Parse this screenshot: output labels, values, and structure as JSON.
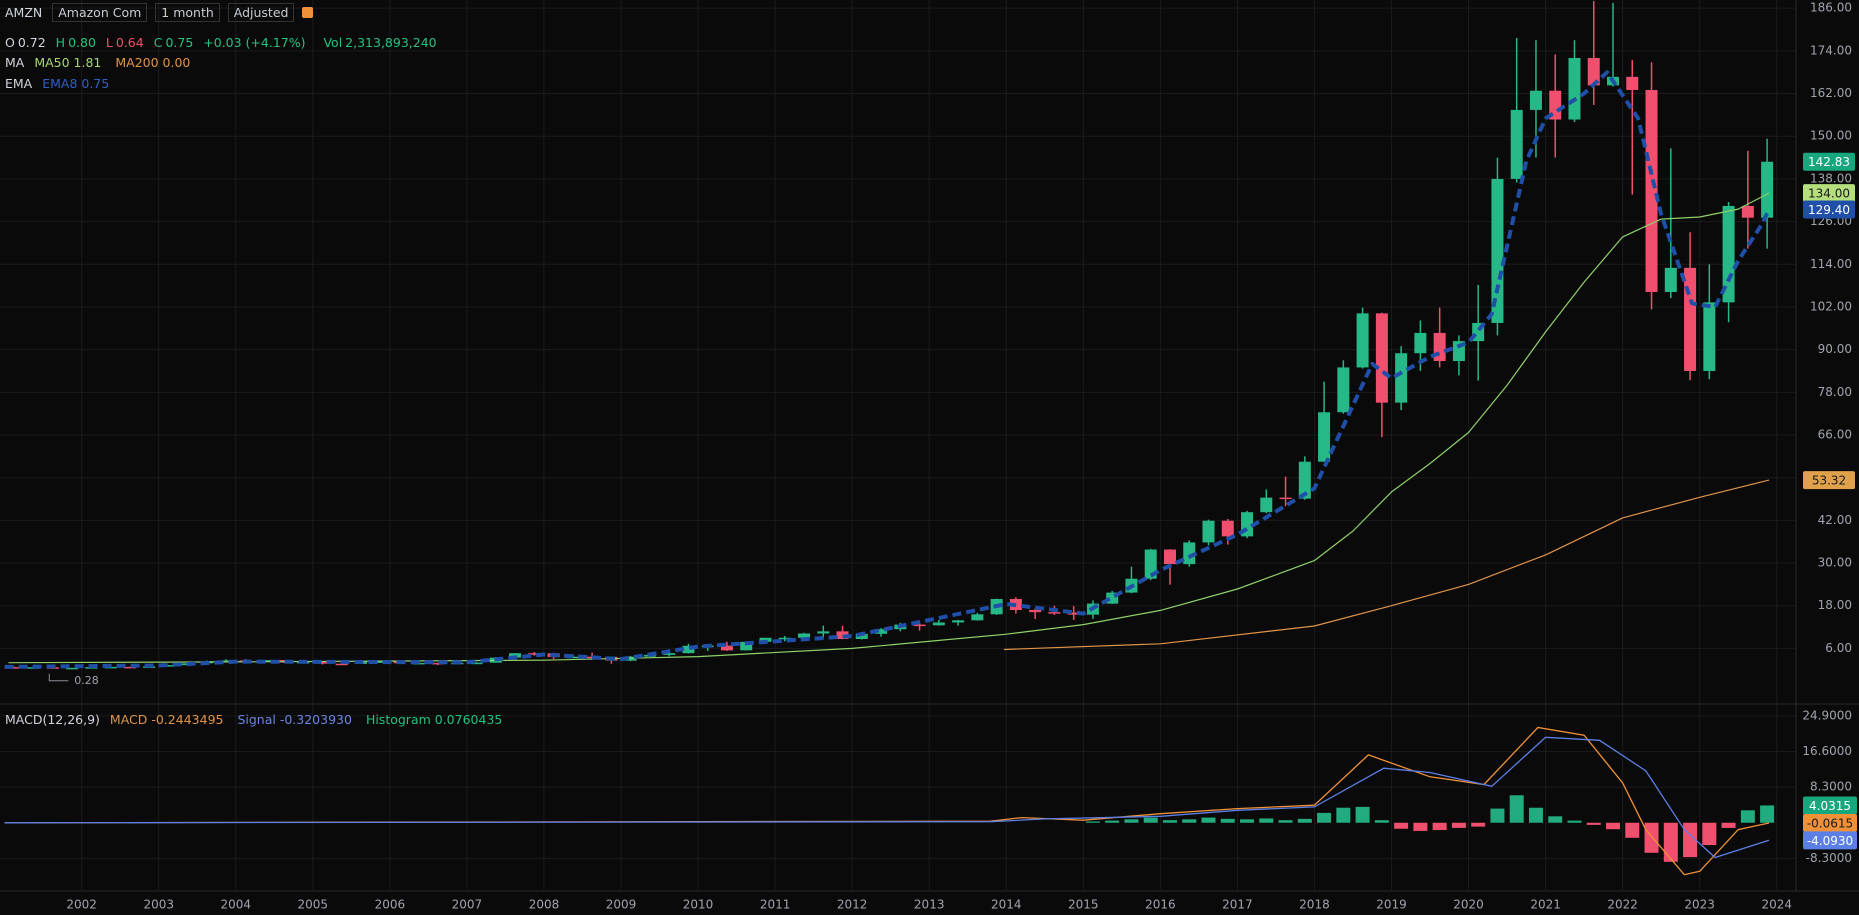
{
  "header": {
    "symbol": "AMZN",
    "name": "Amazon Com",
    "interval": "1 month",
    "adjustment": "Adjusted"
  },
  "ohlc_legend": {
    "open_label": "O",
    "open": "0.72",
    "high_label": "H",
    "high": "0.80",
    "low_label": "L",
    "low": "0.64",
    "close_label": "C",
    "close": "0.75",
    "change": "+0.03 (+4.17%)",
    "volume_label": "Vol",
    "volume": "2,313,893,240"
  },
  "ma_legend": {
    "label": "MA",
    "ma50": "MA50 1.81",
    "ma200": "MA200 0.00"
  },
  "ema_legend": {
    "label": "EMA",
    "ema8": "EMA8 0.75"
  },
  "macd_legend": {
    "label": "MACD(12,26,9)",
    "macd": "MACD -0.2443495",
    "signal": "Signal -0.3203930",
    "histogram": "Histogram 0.0760435"
  },
  "chart_data": [
    {
      "type": "candlestick",
      "up_color": "#26b886",
      "down_color": "#f0506e",
      "x": [
        2001.125,
        2001.375,
        2001.625,
        2001.875,
        2002.125,
        2002.375,
        2002.625,
        2002.875,
        2003.125,
        2003.375,
        2003.625,
        2003.875,
        2004.125,
        2004.375,
        2004.625,
        2004.875,
        2005.125,
        2005.375,
        2005.625,
        2005.875,
        2006.125,
        2006.375,
        2006.625,
        2006.875,
        2007.125,
        2007.375,
        2007.625,
        2007.875,
        2008.125,
        2008.375,
        2008.625,
        2008.875,
        2009.125,
        2009.375,
        2009.625,
        2009.875,
        2010.125,
        2010.375,
        2010.625,
        2010.875,
        2011.125,
        2011.375,
        2011.625,
        2011.875,
        2012.125,
        2012.375,
        2012.625,
        2012.875,
        2013.125,
        2013.375,
        2013.625,
        2013.875,
        2014.125,
        2014.375,
        2014.625,
        2014.875,
        2015.125,
        2015.375,
        2015.625,
        2015.875,
        2016.125,
        2016.375,
        2016.625,
        2016.875,
        2017.125,
        2017.375,
        2017.625,
        2017.875,
        2018.125,
        2018.375,
        2018.625,
        2018.875,
        2019.125,
        2019.375,
        2019.625,
        2019.875,
        2020.125,
        2020.375,
        2020.625,
        2020.875,
        2021.125,
        2021.375,
        2021.625,
        2021.875,
        2022.125,
        2022.375,
        2022.625,
        2022.875,
        2023.125,
        2023.375,
        2023.625,
        2023.875
      ],
      "ohlc": [
        [
          0.75,
          0.85,
          0.5,
          0.53
        ],
        [
          0.53,
          0.85,
          0.45,
          0.71
        ],
        [
          0.71,
          0.75,
          0.3,
          0.32
        ],
        [
          0.32,
          0.56,
          0.28,
          0.54
        ],
        [
          0.54,
          0.75,
          0.49,
          0.73
        ],
        [
          0.73,
          0.98,
          0.68,
          0.81
        ],
        [
          0.81,
          0.85,
          0.52,
          0.8
        ],
        [
          0.8,
          1.1,
          0.77,
          0.94
        ],
        [
          0.94,
          1.35,
          0.9,
          1.3
        ],
        [
          1.3,
          1.85,
          1.28,
          1.82
        ],
        [
          1.82,
          2.6,
          1.8,
          2.42
        ],
        [
          2.42,
          2.97,
          2.3,
          2.63
        ],
        [
          2.63,
          3.0,
          1.9,
          2.16
        ],
        [
          2.16,
          2.75,
          2.0,
          2.72
        ],
        [
          2.72,
          2.75,
          1.9,
          2.04
        ],
        [
          2.04,
          2.3,
          1.8,
          2.21
        ],
        [
          2.21,
          2.23,
          1.5,
          1.71
        ],
        [
          1.71,
          2.0,
          1.6,
          1.65
        ],
        [
          1.65,
          2.3,
          1.62,
          2.27
        ],
        [
          2.27,
          2.5,
          1.9,
          2.36
        ],
        [
          2.36,
          2.5,
          1.75,
          1.83
        ],
        [
          1.83,
          1.95,
          1.6,
          1.93
        ],
        [
          1.93,
          1.97,
          1.3,
          1.61
        ],
        [
          1.61,
          2.2,
          1.6,
          1.97
        ],
        [
          1.97,
          2.15,
          1.8,
          1.99
        ],
        [
          1.99,
          3.6,
          1.95,
          3.42
        ],
        [
          3.42,
          4.7,
          3.4,
          4.66
        ],
        [
          4.66,
          5.0,
          3.95,
          4.63
        ],
        [
          4.63,
          4.8,
          3.0,
          3.57
        ],
        [
          3.57,
          4.3,
          3.5,
          3.67
        ],
        [
          3.67,
          4.8,
          3.2,
          3.64
        ],
        [
          3.64,
          3.7,
          1.7,
          2.56
        ],
        [
          2.56,
          3.9,
          2.4,
          3.67
        ],
        [
          3.67,
          4.4,
          3.6,
          4.18
        ],
        [
          4.18,
          4.8,
          3.8,
          4.67
        ],
        [
          4.67,
          7.3,
          4.6,
          6.73
        ],
        [
          6.73,
          6.9,
          5.3,
          6.79
        ],
        [
          6.79,
          7.9,
          5.3,
          5.46
        ],
        [
          5.46,
          8.0,
          5.4,
          7.85
        ],
        [
          7.85,
          8.9,
          7.6,
          9.0
        ],
        [
          9.0,
          9.5,
          8.0,
          9.0
        ],
        [
          9.0,
          10.4,
          8.9,
          10.2
        ],
        [
          10.2,
          12.4,
          8.9,
          10.8
        ],
        [
          10.8,
          12.4,
          8.6,
          8.65
        ],
        [
          8.65,
          9.8,
          8.5,
          10.1
        ],
        [
          10.1,
          11.7,
          9.3,
          11.4
        ],
        [
          11.4,
          13.2,
          10.8,
          12.7
        ],
        [
          12.7,
          13.2,
          11.0,
          12.5
        ],
        [
          12.5,
          14.0,
          12.4,
          13.3
        ],
        [
          13.3,
          14.0,
          12.4,
          13.9
        ],
        [
          13.9,
          16.0,
          13.8,
          15.6
        ],
        [
          15.6,
          20.0,
          15.4,
          19.9
        ],
        [
          19.9,
          20.4,
          15.8,
          16.8
        ],
        [
          16.8,
          17.2,
          14.3,
          16.2
        ],
        [
          16.2,
          18.0,
          15.4,
          16.1
        ],
        [
          16.1,
          17.9,
          14.0,
          15.5
        ],
        [
          15.5,
          19.5,
          14.3,
          18.6
        ],
        [
          18.6,
          22.2,
          18.5,
          21.7
        ],
        [
          21.7,
          29.0,
          21.5,
          25.6
        ],
        [
          25.6,
          34.0,
          25.2,
          33.8
        ],
        [
          33.8,
          33.9,
          23.9,
          29.7
        ],
        [
          29.7,
          36.4,
          29.0,
          35.8
        ],
        [
          35.8,
          42.2,
          35.0,
          41.9
        ],
        [
          41.9,
          42.4,
          35.2,
          37.5
        ],
        [
          37.5,
          44.7,
          37.0,
          44.3
        ],
        [
          44.3,
          50.7,
          44.0,
          48.4
        ],
        [
          48.4,
          54.3,
          46.0,
          48.1
        ],
        [
          48.1,
          60.0,
          47.8,
          58.5
        ],
        [
          58.5,
          81.0,
          58.5,
          72.4
        ],
        [
          72.4,
          87.0,
          72.0,
          85.0
        ],
        [
          85.0,
          101.8,
          84.7,
          100.2
        ],
        [
          100.2,
          100.4,
          65.4,
          75.1
        ],
        [
          75.1,
          91.0,
          73.0,
          89.0
        ],
        [
          89.0,
          98.2,
          84.0,
          94.7
        ],
        [
          94.7,
          101.8,
          85.0,
          86.8
        ],
        [
          86.8,
          94.0,
          82.8,
          92.4
        ],
        [
          92.4,
          108.2,
          81.3,
          97.5
        ],
        [
          97.5,
          144.0,
          94.0,
          138.0
        ],
        [
          138.0,
          177.6,
          137.0,
          157.4
        ],
        [
          157.4,
          177.0,
          144.0,
          162.8
        ],
        [
          162.8,
          173.0,
          144.0,
          154.7
        ],
        [
          154.7,
          177.0,
          154.0,
          172.0
        ],
        [
          172.0,
          188.0,
          158.8,
          164.3
        ],
        [
          164.3,
          187.5,
          164.0,
          166.7
        ],
        [
          166.7,
          171.4,
          133.6,
          163.0
        ],
        [
          163.0,
          170.8,
          101.3,
          106.2
        ],
        [
          106.2,
          146.6,
          104.5,
          113.0
        ],
        [
          113.0,
          123.0,
          81.4,
          84.0
        ],
        [
          84.0,
          114.0,
          81.7,
          103.3
        ],
        [
          103.3,
          131.5,
          97.7,
          130.4
        ],
        [
          130.4,
          145.9,
          118.4,
          127.1
        ],
        [
          127.1,
          149.3,
          118.4,
          142.83
        ]
      ],
      "overlays": [
        {
          "color": "#8fd16a",
          "style": "solid",
          "x": [
            2001.05,
            2004,
            2008,
            2010,
            2012,
            2014,
            2015,
            2016,
            2017,
            2018,
            2018.5,
            2019,
            2019.5,
            2020,
            2020.5,
            2021,
            2021.5,
            2022,
            2022.5,
            2023,
            2023.5,
            2023.9
          ],
          "values": [
            2.0,
            2.2,
            2.7,
            3.7,
            6,
            10,
            12.7,
            16.7,
            22.7,
            30.7,
            39,
            50,
            58,
            66.7,
            80,
            95,
            109,
            121.7,
            126.7,
            127.3,
            129.5,
            134
          ]
        },
        {
          "color": "#e0944a",
          "style": "solid",
          "x": [
            2013.97,
            2016,
            2018,
            2019,
            2020,
            2021,
            2022,
            2023,
            2023.9
          ],
          "values": [
            5.7,
            7.3,
            12.3,
            18,
            24,
            32.3,
            42.7,
            48.5,
            53.32
          ]
        },
        {
          "color": "#1f4fa8",
          "style": "dashed",
          "x": [
            2001,
            2003,
            2004,
            2007,
            2008,
            2009,
            2010,
            2012,
            2014,
            2015,
            2016,
            2017,
            2018,
            2018.75,
            2019,
            2019.5,
            2020,
            2020.3,
            2020.75,
            2021,
            2021.5,
            2021.8,
            2022.2,
            2022.5,
            2022.9,
            2023.2,
            2023.5,
            2023.8,
            2023.9
          ],
          "values": [
            0.8,
            1.2,
            2.3,
            2.1,
            4.3,
            3.0,
            6.5,
            9.5,
            18.5,
            15.8,
            28,
            38,
            51,
            86,
            82,
            88,
            92,
            100,
            143,
            155,
            162,
            168,
            155,
            128,
            103,
            102,
            115,
            125,
            129.4
          ]
        }
      ],
      "price_labels": [
        {
          "value": 142.83,
          "label": "142.83",
          "color": "#16a77c",
          "text_color": "#ffffff"
        },
        {
          "value": 134,
          "label": "134.00",
          "color": "#b5df7c",
          "text_color": "#1a1a1a"
        },
        {
          "value": 129.4,
          "label": "129.40",
          "color": "#1f4fa8",
          "text_color": "#ffffff"
        },
        {
          "value": 53.32,
          "label": "53.32",
          "color": "#e0a14a",
          "text_color": "#1a1a1a"
        }
      ],
      "annotation": {
        "x": 2001.8,
        "value": 0.28,
        "label": "0.28"
      },
      "xlim": [
        2000.94,
        2024.25
      ],
      "xticks": [
        2002,
        2003,
        2004,
        2005,
        2006,
        2007,
        2008,
        2009,
        2010,
        2011,
        2012,
        2013,
        2014,
        2015,
        2016,
        2017,
        2018,
        2019,
        2020,
        2021,
        2022,
        2023,
        2024
      ],
      "ylim": [
        -8.5,
        188.3
      ],
      "yticks": [
        {
          "value": 186,
          "label": "186.00"
        },
        {
          "value": 174,
          "label": "174.00"
        },
        {
          "value": 162,
          "label": "162.00"
        },
        {
          "value": 150,
          "label": "150.00"
        },
        {
          "value": 138,
          "label": "138.00"
        },
        {
          "value": 126,
          "label": "126.00"
        },
        {
          "value": 114,
          "label": "114.00"
        },
        {
          "value": 102,
          "label": "102.00"
        },
        {
          "value": 90,
          "label": "90.00"
        },
        {
          "value": 78,
          "label": "78.00"
        },
        {
          "value": 66,
          "label": "66.00"
        },
        {
          "value": 54,
          "label": "54.00"
        },
        {
          "value": 42,
          "label": "42.00"
        },
        {
          "value": 30,
          "label": "30.00"
        },
        {
          "value": 18,
          "label": "18.00"
        },
        {
          "value": 6,
          "label": "6.00"
        }
      ],
      "grid": true
    },
    {
      "type": "macd",
      "xlim": [
        2000.94,
        2024.25
      ],
      "ylim": [
        -15.9,
        26.5
      ],
      "yticks": [
        {
          "value": 24.9,
          "label": "24.9000"
        },
        {
          "value": 16.6,
          "label": "16.6000"
        },
        {
          "value": 8.3,
          "label": "8.3000"
        },
        {
          "value": -8.3,
          "label": "-8.3000"
        }
      ],
      "lines": [
        {
          "color": "#f0913a",
          "x": [
            2001,
            2013.8,
            2014.2,
            2015,
            2016,
            2017,
            2018,
            2018.7,
            2019.5,
            2020.2,
            2020.9,
            2021.5,
            2022,
            2022.3,
            2022.8,
            2023.0,
            2023.5,
            2023.9
          ],
          "values": [
            0,
            0.35,
            1.2,
            0.6,
            2.1,
            3.3,
            4.1,
            15.8,
            10.7,
            8.9,
            22.2,
            20.4,
            9.3,
            -1.6,
            -12.1,
            -11.3,
            -1.6,
            -0.0615
          ]
        },
        {
          "color": "#5b7fe6",
          "x": [
            2001,
            2013.8,
            2014.5,
            2016,
            2017,
            2018,
            2018.9,
            2019.5,
            2020.3,
            2021,
            2021.7,
            2022.3,
            2022.8,
            2023.2,
            2023.9
          ],
          "values": [
            0,
            0.25,
            0.9,
            1.5,
            2.9,
            3.7,
            12.7,
            11.7,
            8.5,
            19.9,
            19.2,
            12.1,
            -1.6,
            -8.1,
            -4.093
          ]
        }
      ],
      "histogram": {
        "up_color": "#22ab7f",
        "down_color": "#f0506e",
        "x": [
          2015.125,
          2015.375,
          2015.625,
          2015.875,
          2016.125,
          2016.375,
          2016.625,
          2016.875,
          2017.125,
          2017.375,
          2017.625,
          2017.875,
          2018.125,
          2018.375,
          2018.625,
          2018.875,
          2019.125,
          2019.375,
          2019.625,
          2019.875,
          2020.125,
          2020.375,
          2020.625,
          2020.875,
          2021.125,
          2021.375,
          2021.625,
          2021.875,
          2022.125,
          2022.375,
          2022.625,
          2022.875,
          2023.125,
          2023.375,
          2023.625,
          2023.875
        ],
        "values": [
          0.3,
          0.5,
          0.8,
          1.2,
          0.6,
          0.8,
          1.2,
          0.9,
          0.8,
          1.0,
          0.6,
          0.9,
          2.3,
          3.5,
          3.7,
          0.6,
          -1.4,
          -1.9,
          -1.7,
          -1.2,
          -0.9,
          3.3,
          6.4,
          3.5,
          1.5,
          0.5,
          -0.5,
          -1.5,
          -3.5,
          -7.0,
          -9.1,
          -8.0,
          -5.2,
          -1.2,
          2.9,
          4.0315
        ]
      },
      "value_labels": [
        {
          "value": 4.0315,
          "label": "4.0315",
          "color": "#16a77c",
          "text_color": "#ffffff"
        },
        {
          "value": -0.0615,
          "label": "-0.0615",
          "color": "#f0913a",
          "text_color": "#1a1a1a"
        },
        {
          "value": -4.093,
          "label": "-4.0930",
          "color": "#5b7fe6",
          "text_color": "#ffffff"
        }
      ]
    }
  ]
}
